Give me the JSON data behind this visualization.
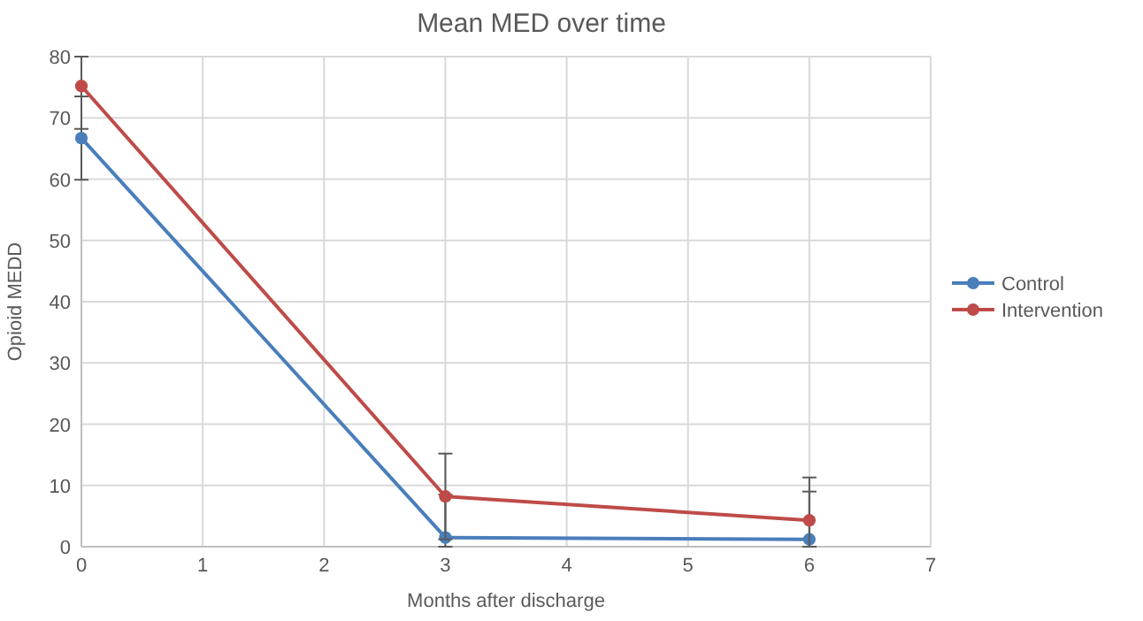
{
  "chart_data": {
    "type": "line",
    "title": "Mean MED over time",
    "xlabel": "Months after discharge",
    "ylabel": "Opioid MEDD",
    "xlim": [
      0,
      7
    ],
    "xticks": [
      0,
      1,
      2,
      3,
      4,
      5,
      6,
      7
    ],
    "ylim": [
      0,
      80
    ],
    "yticks": [
      0,
      10,
      20,
      30,
      40,
      50,
      60,
      70,
      80
    ],
    "grid": true,
    "legend": "right",
    "marker": "circle",
    "series": [
      {
        "name": "Control",
        "color": "#4a7ebb",
        "x": [
          0,
          3,
          6
        ],
        "values": [
          66.7,
          1.5,
          1.2
        ],
        "errors": [
          [
            59.9,
            73.5
          ],
          [
            0,
            8.5
          ],
          [
            0,
            9
          ]
        ]
      },
      {
        "name": "Intervention",
        "color": "#be4b48",
        "x": [
          0,
          3,
          6
        ],
        "values": [
          75.2,
          8.2,
          4.3
        ],
        "errors": [
          [
            68.2,
            80
          ],
          [
            1.2,
            15.2
          ],
          [
            0,
            11.3
          ]
        ]
      }
    ]
  }
}
